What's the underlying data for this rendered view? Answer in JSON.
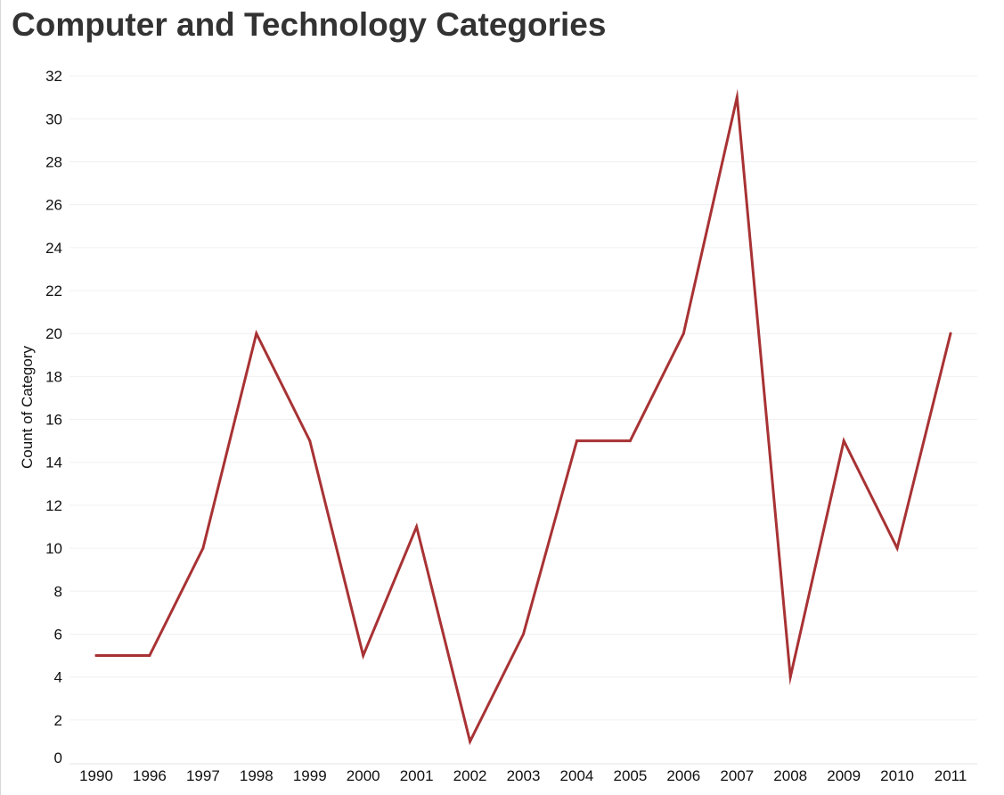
{
  "chart_data": {
    "type": "line",
    "title": "Computer and Technology Categories",
    "xlabel": "",
    "ylabel": "Count of Category",
    "categories": [
      "1990",
      "1996",
      "1997",
      "1998",
      "1999",
      "2000",
      "2001",
      "2002",
      "2003",
      "2004",
      "2005",
      "2006",
      "2007",
      "2008",
      "2009",
      "2010",
      "2011"
    ],
    "values": [
      5,
      5,
      10,
      20,
      15,
      5,
      11,
      1,
      6,
      15,
      15,
      20,
      31,
      4,
      15,
      10,
      20
    ],
    "ylim": [
      0,
      33
    ],
    "yticks": [
      0,
      2,
      4,
      6,
      8,
      10,
      12,
      14,
      16,
      18,
      20,
      22,
      24,
      26,
      28,
      30,
      32
    ],
    "grid": true,
    "legend": "none",
    "line_color": "#a83234",
    "gridline_color": "#f0f0f0",
    "text_color": "#111111"
  }
}
